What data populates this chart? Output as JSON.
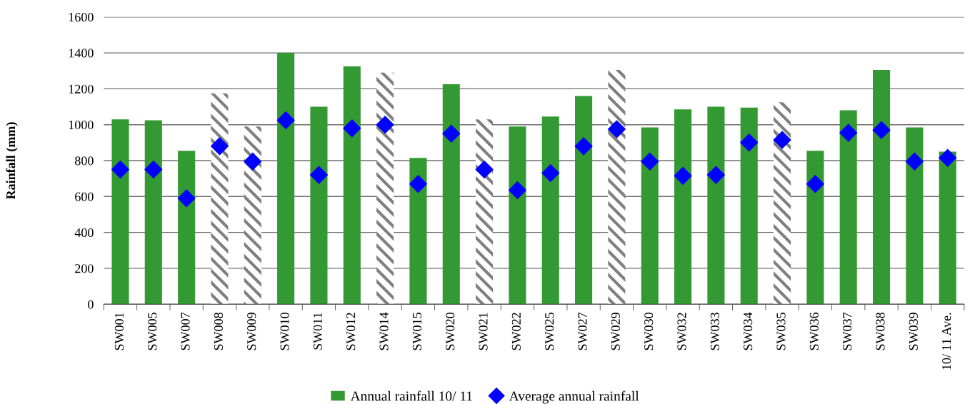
{
  "chart_data": {
    "type": "bar",
    "ylabel": "Rainfall (mm)",
    "categories": [
      "SW001",
      "SW005",
      "SW007",
      "SW008",
      "SW009",
      "SW010",
      "SW011",
      "SW012",
      "SW014",
      "SW015",
      "SW020",
      "SW021",
      "SW022",
      "SW025",
      "SW027",
      "SW029",
      "SW030",
      "SW032",
      "SW033",
      "SW034",
      "SW035",
      "SW036",
      "SW037",
      "SW038",
      "SW039",
      "10/ 11 Ave."
    ],
    "series": [
      {
        "name": "Annual rainfall 10/ 11",
        "color": "#339933",
        "colors": [
          "#339933",
          "#339933",
          "#339933",
          "#7f7f7f",
          "#7f7f7f",
          "#339933",
          "#339933",
          "#339933",
          "#7f7f7f",
          "#339933",
          "#339933",
          "#7f7f7f",
          "#339933",
          "#339933",
          "#339933",
          "#7f7f7f",
          "#339933",
          "#339933",
          "#339933",
          "#339933",
          "#7f7f7f",
          "#339933",
          "#339933",
          "#339933",
          "#339933",
          "#339933"
        ],
        "values": [
          1030,
          1025,
          855,
          1175,
          990,
          1400,
          1100,
          1325,
          1290,
          815,
          1225,
          1030,
          990,
          1045,
          1160,
          1305,
          985,
          1085,
          1100,
          1095,
          1125,
          855,
          1080,
          1305,
          985,
          850
        ]
      },
      {
        "name": "Average annual rainfall",
        "type": "scatter",
        "color": "#0000ff",
        "marker": "diamond",
        "values": [
          750,
          750,
          590,
          880,
          795,
          1025,
          720,
          980,
          1000,
          670,
          950,
          750,
          635,
          730,
          880,
          975,
          795,
          715,
          720,
          900,
          915,
          670,
          955,
          970,
          795,
          815
        ]
      }
    ],
    "ylim": [
      0,
      1600
    ],
    "yticks": [
      0,
      200,
      400,
      600,
      800,
      1000,
      1200,
      1400,
      1600
    ],
    "grid": "y",
    "legend": "bottom"
  }
}
